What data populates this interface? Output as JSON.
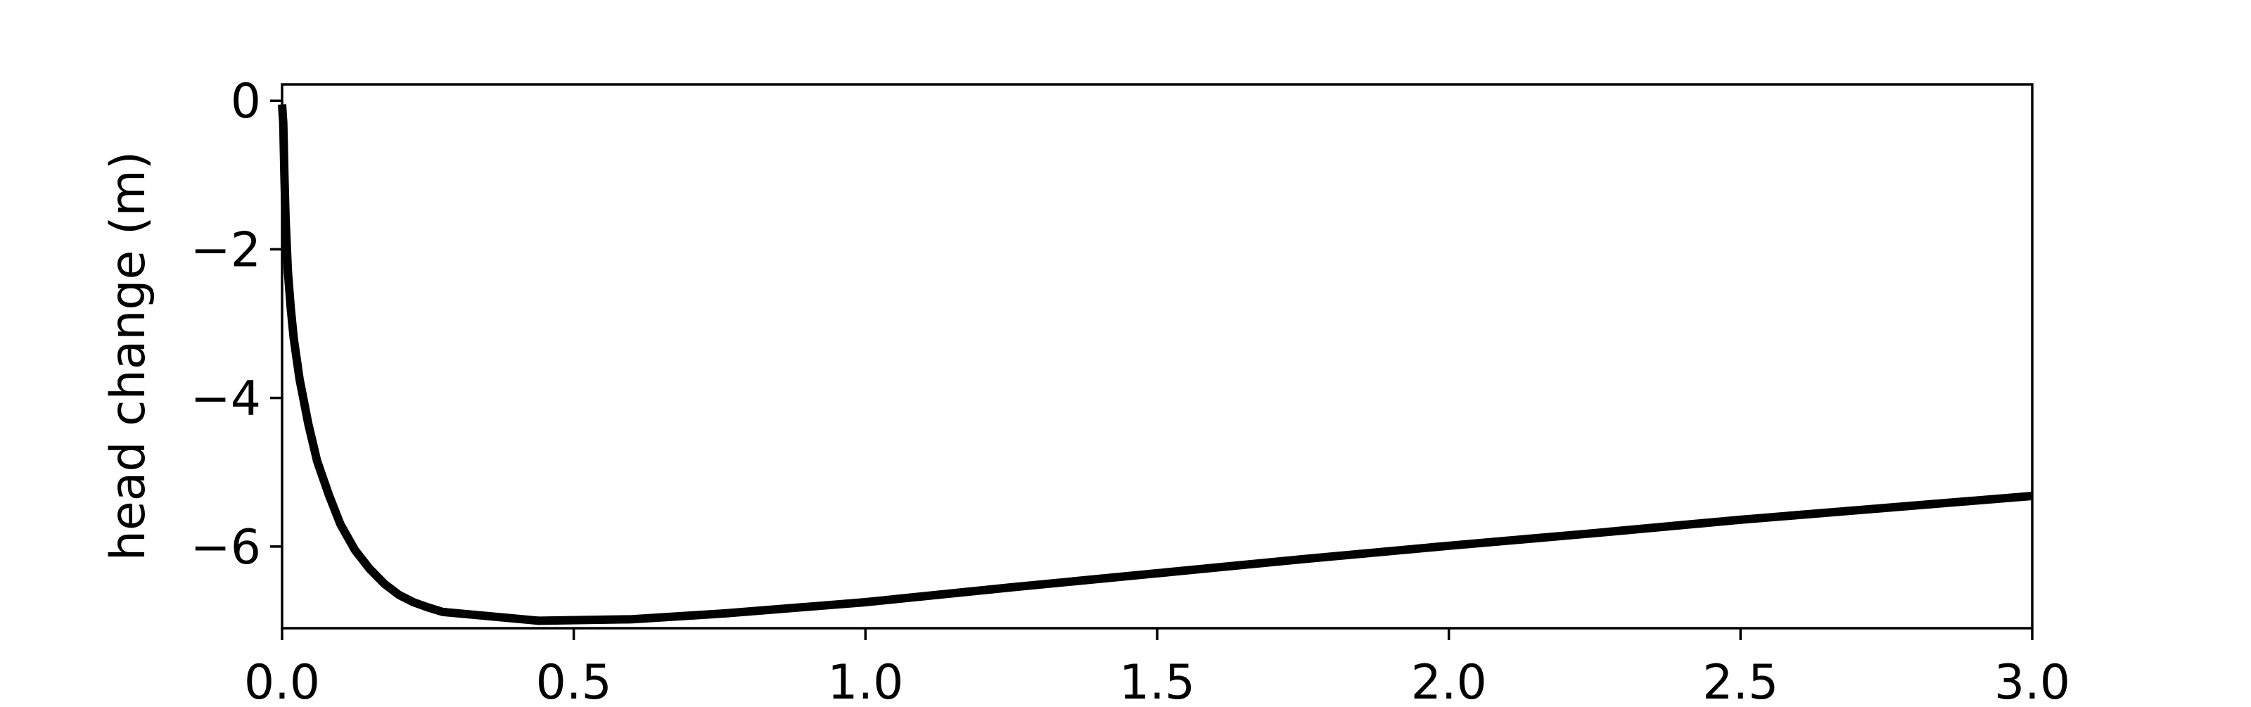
{
  "chart_data": {
    "type": "line",
    "title": "",
    "xlabel": "",
    "ylabel": "head change (m)",
    "xlim": [
      0.0,
      3.0
    ],
    "ylim": [
      -7.1,
      0.22
    ],
    "xticks": [
      0.0,
      0.5,
      1.0,
      1.5,
      2.0,
      2.5,
      3.0
    ],
    "xtick_labels": [
      "0.0",
      "0.5",
      "1.0",
      "1.5",
      "2.0",
      "2.5",
      "3.0"
    ],
    "yticks": [
      0,
      -2,
      -4,
      -6
    ],
    "ytick_labels": [
      "0",
      "−2",
      "−4",
      "−6"
    ],
    "grid": false,
    "legend": "none",
    "line_color": "#000000",
    "series": [
      {
        "x": [
          0.0,
          0.002,
          0.004,
          0.006,
          0.01,
          0.015,
          0.02,
          0.03,
          0.045,
          0.06,
          0.08,
          0.1,
          0.125,
          0.15,
          0.175,
          0.2,
          0.225,
          0.25,
          0.275,
          0.44,
          0.6,
          0.76,
          0.92,
          1.0,
          1.25,
          1.5,
          1.75,
          2.0,
          2.25,
          2.5,
          2.75,
          3.0
        ],
        "y": [
          -0.05,
          -0.3,
          -1.0,
          -1.6,
          -2.3,
          -2.8,
          -3.2,
          -3.75,
          -4.35,
          -4.85,
          -5.3,
          -5.7,
          -6.05,
          -6.3,
          -6.5,
          -6.65,
          -6.75,
          -6.82,
          -6.88,
          -7.0,
          -6.98,
          -6.9,
          -6.8,
          -6.75,
          -6.55,
          -6.36,
          -6.17,
          -5.99,
          -5.82,
          -5.64,
          -5.48,
          -5.32
        ]
      }
    ]
  }
}
